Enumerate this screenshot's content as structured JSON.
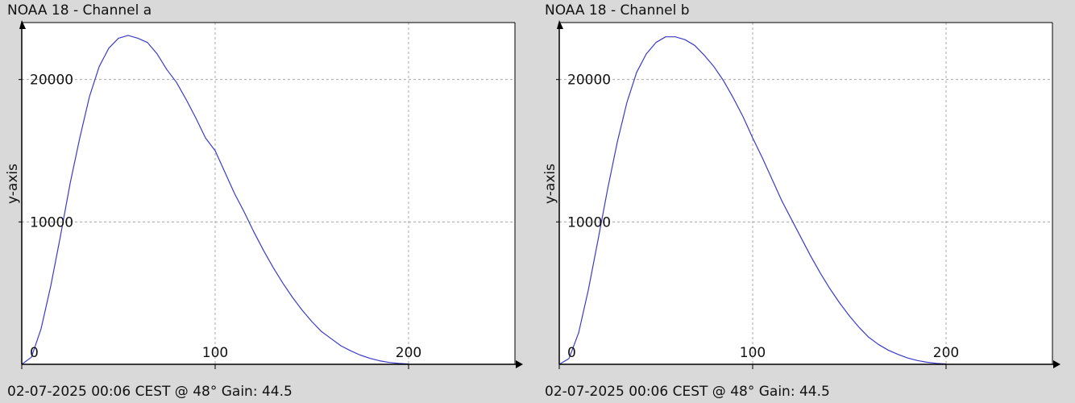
{
  "panels": [
    {
      "title": "NOAA 18 - Channel a",
      "footer": "02-07-2025 00:06 CEST @ 48° Gain: 44.5"
    },
    {
      "title": "NOAA 18 - Channel b",
      "footer": "02-07-2025 00:06 CEST @ 48° Gain: 44.5"
    }
  ],
  "colors": {
    "background": "#d9d9d9",
    "plot_area": "#ffffff",
    "line": "#3b3bc8",
    "grid": "#a8a8a8",
    "axis": "#000000"
  },
  "chart_data": [
    {
      "type": "line",
      "title": "NOAA 18 - Channel a",
      "xlabel": "",
      "ylabel": "y-axis",
      "xlim": [
        0,
        255
      ],
      "ylim": [
        0,
        24000
      ],
      "x_ticks": [
        0,
        100,
        200
      ],
      "y_ticks": [
        10000,
        20000
      ],
      "grid": true,
      "legend": "none",
      "series": [
        {
          "x": [
            0,
            5,
            10,
            15,
            20,
            25,
            30,
            35,
            40,
            45,
            50,
            55,
            60,
            65,
            70,
            75,
            80,
            85,
            90,
            95,
            100,
            105,
            110,
            115,
            120,
            125,
            130,
            135,
            140,
            145,
            150,
            155,
            160,
            165,
            170,
            175,
            180,
            185,
            190,
            195,
            200
          ],
          "values": [
            0,
            500,
            2500,
            5500,
            9000,
            12700,
            15900,
            18800,
            20900,
            22200,
            22900,
            23100,
            22900,
            22600,
            21800,
            20700,
            19800,
            18600,
            17300,
            15900,
            15000,
            13500,
            12000,
            10700,
            9300,
            8000,
            6800,
            5700,
            4700,
            3800,
            3000,
            2300,
            1800,
            1300,
            950,
            650,
            420,
            250,
            130,
            60,
            20
          ]
        }
      ]
    },
    {
      "type": "line",
      "title": "NOAA 18 - Channel b",
      "xlabel": "",
      "ylabel": "y-axis",
      "xlim": [
        0,
        255
      ],
      "ylim": [
        0,
        24000
      ],
      "x_ticks": [
        0,
        100,
        200
      ],
      "y_ticks": [
        10000,
        20000
      ],
      "grid": true,
      "legend": "none",
      "series": [
        {
          "x": [
            0,
            5,
            10,
            15,
            20,
            25,
            30,
            35,
            40,
            45,
            50,
            55,
            60,
            65,
            70,
            75,
            80,
            85,
            90,
            95,
            100,
            105,
            110,
            115,
            120,
            125,
            130,
            135,
            140,
            145,
            150,
            155,
            160,
            165,
            170,
            175,
            180,
            185,
            190,
            195,
            200
          ],
          "values": [
            0,
            400,
            2200,
            5200,
            8700,
            12300,
            15600,
            18400,
            20500,
            21800,
            22600,
            23000,
            23000,
            22800,
            22400,
            21700,
            20900,
            19900,
            18700,
            17400,
            15900,
            14500,
            13000,
            11500,
            10200,
            8900,
            7600,
            6400,
            5300,
            4300,
            3400,
            2600,
            1900,
            1400,
            1000,
            700,
            450,
            270,
            150,
            70,
            20
          ]
        }
      ]
    }
  ]
}
